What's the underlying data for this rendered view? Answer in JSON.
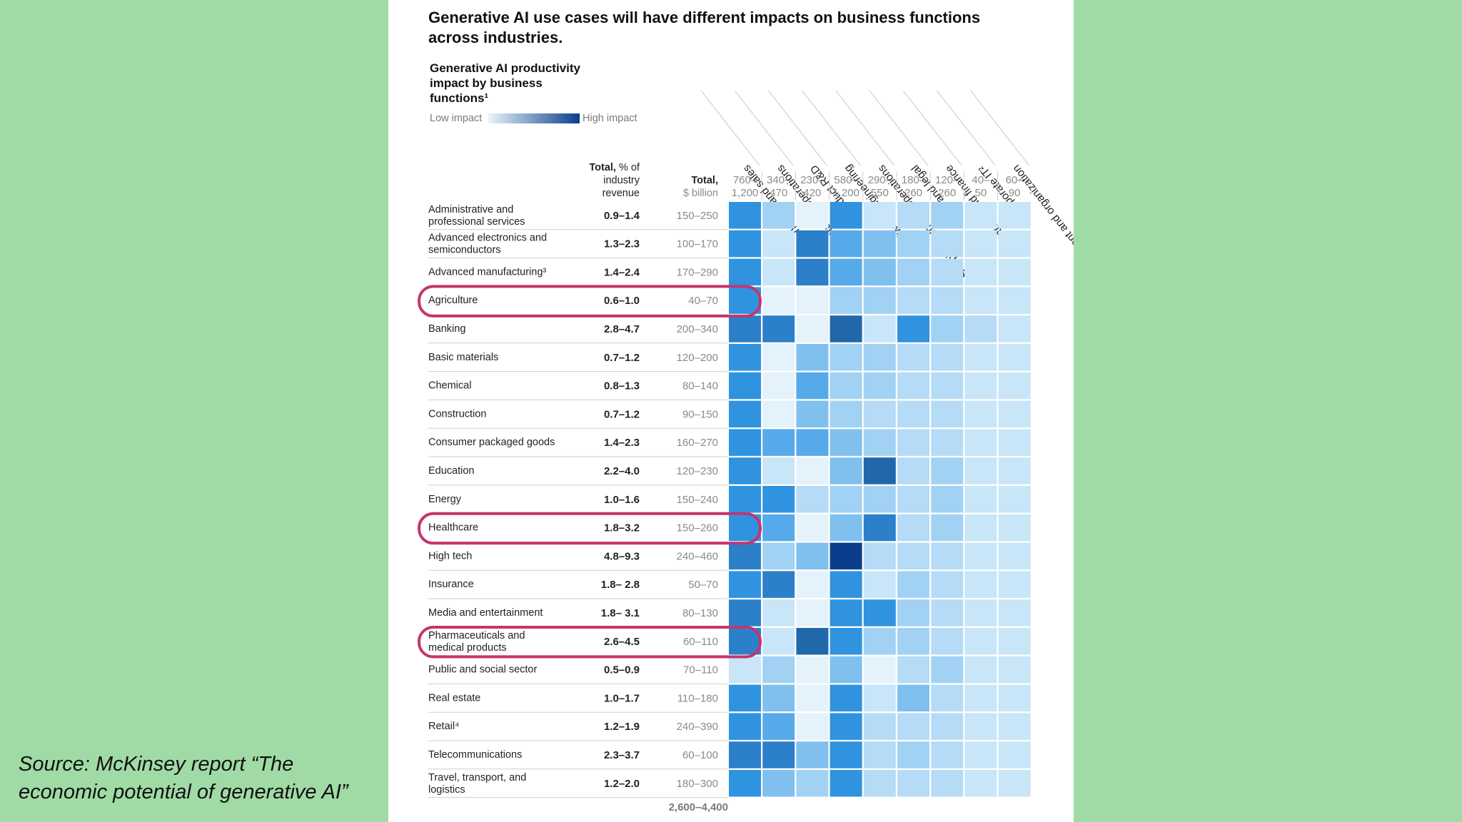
{
  "source_caption": "Source: McKinsey report “The economic potential of generative AI”",
  "colors": {
    "page_background": "#a0dba6",
    "highlight_ring": "#c4356e",
    "scale_low": "#e8f3fb",
    "scale_high": "#0a3e8c"
  },
  "chart_data": {
    "type": "heatmap",
    "title": "Generative AI use cases will have different impacts on business functions across industries.",
    "subtitle": "Generative AI productivity impact by business functions¹",
    "legend": {
      "low_label": "Low impact",
      "high_label": "High impact"
    },
    "columns": [
      {
        "name": "Marketing and sales",
        "total": "760–1,200"
      },
      {
        "name": "Customer operations",
        "total": "340–470"
      },
      {
        "name": "Product R&D",
        "total": "230–420"
      },
      {
        "name": "Software engineering",
        "total": "580–1,200"
      },
      {
        "name": "Supply chain and operations",
        "total": "290–550"
      },
      {
        "name": "Risk and legal",
        "total": "180–260"
      },
      {
        "name": "Strategy and finance",
        "total": "120–260"
      },
      {
        "name": "Corporate IT²",
        "total": "40–50"
      },
      {
        "name": "Talent and organization",
        "total": "60–90"
      }
    ],
    "header_pct": {
      "bold": "Total,",
      "rest": " % of industry revenue"
    },
    "header_usd": {
      "bold": "Total,",
      "rest": "$ billion"
    },
    "grand_total": "2,600–4,400",
    "rows": [
      {
        "industry": "Administrative and professional services",
        "pct": "0.9–1.4",
        "usd": "150–250",
        "values": [
          7,
          4,
          1,
          7,
          2,
          3,
          4,
          2,
          2
        ],
        "highlighted": false
      },
      {
        "industry": "Advanced electronics and semiconductors",
        "pct": "1.3–2.3",
        "usd": "100–170",
        "values": [
          7,
          2,
          8,
          6,
          5,
          4,
          3,
          2,
          2
        ],
        "highlighted": false
      },
      {
        "industry": "Advanced manufacturing³",
        "pct": "1.4–2.4",
        "usd": "170–290",
        "values": [
          7,
          2,
          8,
          6,
          5,
          4,
          3,
          2,
          2
        ],
        "highlighted": false
      },
      {
        "industry": "Agriculture",
        "pct": "0.6–1.0",
        "usd": "40–70",
        "values": [
          7,
          1,
          1,
          4,
          4,
          3,
          3,
          2,
          2
        ],
        "highlighted": true
      },
      {
        "industry": "Banking",
        "pct": "2.8–4.7",
        "usd": "200–340",
        "values": [
          8,
          8,
          1,
          9,
          2,
          7,
          4,
          3,
          2
        ],
        "highlighted": false
      },
      {
        "industry": "Basic materials",
        "pct": "0.7–1.2",
        "usd": "120–200",
        "values": [
          7,
          1,
          5,
          4,
          4,
          3,
          3,
          2,
          2
        ],
        "highlighted": false
      },
      {
        "industry": "Chemical",
        "pct": "0.8–1.3",
        "usd": "80–140",
        "values": [
          7,
          1,
          6,
          4,
          4,
          3,
          3,
          2,
          2
        ],
        "highlighted": false
      },
      {
        "industry": "Construction",
        "pct": "0.7–1.2",
        "usd": "90–150",
        "values": [
          7,
          1,
          5,
          4,
          3,
          3,
          3,
          2,
          2
        ],
        "highlighted": false
      },
      {
        "industry": "Consumer packaged goods",
        "pct": "1.4–2.3",
        "usd": "160–270",
        "values": [
          7,
          6,
          6,
          5,
          4,
          3,
          3,
          2,
          2
        ],
        "highlighted": false
      },
      {
        "industry": "Education",
        "pct": "2.2–4.0",
        "usd": "120–230",
        "values": [
          7,
          2,
          1,
          5,
          9,
          3,
          4,
          2,
          2
        ],
        "highlighted": false
      },
      {
        "industry": "Energy",
        "pct": "1.0–1.6",
        "usd": "150–240",
        "values": [
          7,
          7,
          3,
          4,
          4,
          3,
          4,
          2,
          2
        ],
        "highlighted": false
      },
      {
        "industry": "Healthcare",
        "pct": "1.8–3.2",
        "usd": "150–260",
        "values": [
          7,
          6,
          1,
          5,
          8,
          3,
          4,
          2,
          2
        ],
        "highlighted": true
      },
      {
        "industry": "High tech",
        "pct": "4.8–9.3",
        "usd": "240–460",
        "values": [
          8,
          4,
          5,
          10,
          3,
          3,
          3,
          2,
          2
        ],
        "highlighted": false
      },
      {
        "industry": "Insurance",
        "pct": "1.8– 2.8",
        "usd": "50–70",
        "values": [
          7,
          8,
          1,
          7,
          2,
          4,
          3,
          2,
          2
        ],
        "highlighted": false
      },
      {
        "industry": "Media and entertainment",
        "pct": "1.8– 3.1",
        "usd": "80–130",
        "values": [
          8,
          2,
          1,
          7,
          7,
          4,
          3,
          2,
          2
        ],
        "highlighted": false
      },
      {
        "industry": "Pharmaceuticals and medical products",
        "pct": "2.6–4.5",
        "usd": "60–110",
        "values": [
          8,
          2,
          9,
          7,
          4,
          4,
          3,
          2,
          2
        ],
        "highlighted": true
      },
      {
        "industry": "Public and social sector",
        "pct": "0.5–0.9",
        "usd": "70–110",
        "values": [
          2,
          4,
          1,
          5,
          1,
          3,
          4,
          2,
          2
        ],
        "highlighted": false
      },
      {
        "industry": "Real estate",
        "pct": "1.0–1.7",
        "usd": "110–180",
        "values": [
          7,
          5,
          1,
          7,
          2,
          5,
          3,
          2,
          2
        ],
        "highlighted": false
      },
      {
        "industry": "Retail⁴",
        "pct": "1.2–1.9",
        "usd": "240–390",
        "values": [
          7,
          6,
          1,
          7,
          3,
          3,
          3,
          2,
          2
        ],
        "highlighted": false
      },
      {
        "industry": "Telecommunications",
        "pct": "2.3–3.7",
        "usd": "60–100",
        "values": [
          8,
          8,
          5,
          7,
          3,
          4,
          3,
          2,
          2
        ],
        "highlighted": false
      },
      {
        "industry": "Travel, transport, and logistics",
        "pct": "1.2–2.0",
        "usd": "180–300",
        "values": [
          7,
          5,
          4,
          7,
          3,
          3,
          3,
          2,
          2
        ],
        "highlighted": false
      }
    ],
    "value_scale": [
      0,
      10
    ],
    "grid": false
  }
}
